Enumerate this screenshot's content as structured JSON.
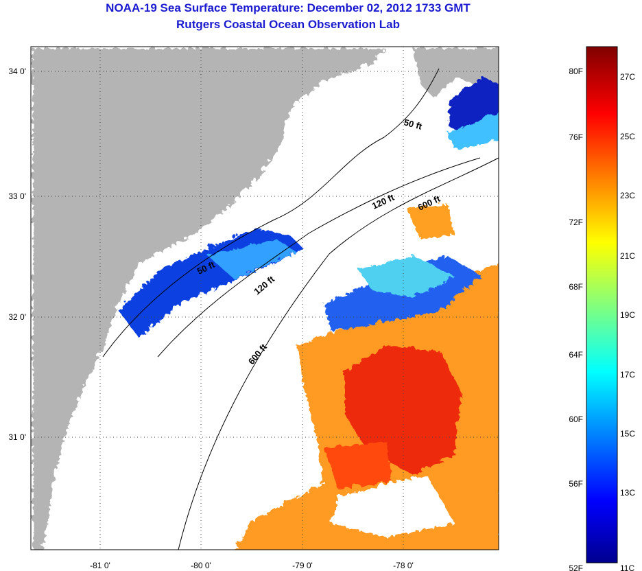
{
  "title": "NOAA-19 Sea Surface Temperature:  December 02, 2012 1733 GMT",
  "subtitle": "Rutgers Coastal Ocean Observation Lab",
  "map": {
    "lat_labels": [
      "34 0'",
      "33 0'",
      "32 0'",
      "31 0'"
    ],
    "lon_labels": [
      "-81 0'",
      "-80 0'",
      "-79 0'",
      "-78 0'"
    ],
    "contours": [
      "50 ft",
      "50 ft",
      "120 ft",
      "120 ft",
      "600 ft",
      "600 ft"
    ],
    "colors": {
      "land": "#b4b4b4",
      "cloud": "#ffffff"
    }
  },
  "colorbar": {
    "fahrenheit": [
      "80F",
      "76F",
      "72F",
      "68F",
      "64F",
      "60F",
      "56F",
      "52F"
    ],
    "celsius": [
      "27C",
      "25C",
      "23C",
      "21C",
      "19C",
      "17C",
      "15C",
      "13C",
      "11C"
    ],
    "range_c": [
      11,
      28
    ]
  }
}
